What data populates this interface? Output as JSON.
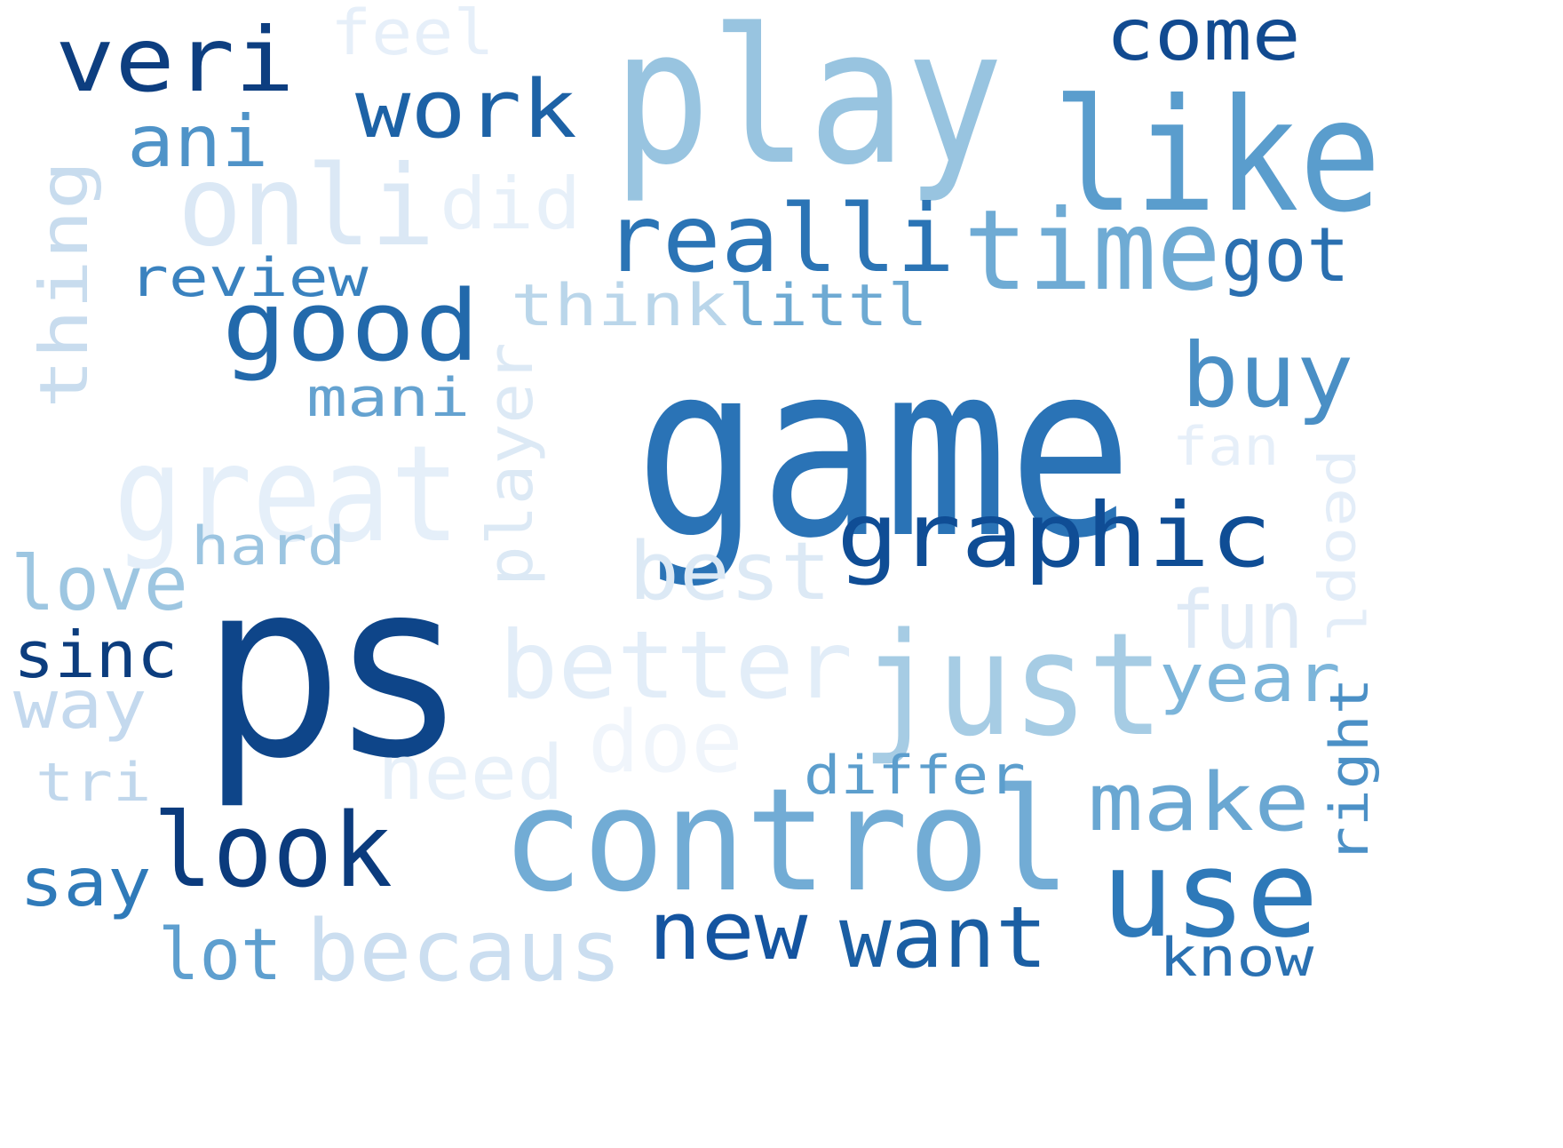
{
  "words": [
    {
      "text": "game",
      "color": "#2a73b6"
    },
    {
      "text": "ps",
      "color": "#0e4589"
    },
    {
      "text": "play",
      "color": "#98c4e0"
    },
    {
      "text": "control",
      "color": "#72acd5"
    },
    {
      "text": "like",
      "color": "#5a9dcd"
    },
    {
      "text": "just",
      "color": "#a6cce4"
    },
    {
      "text": "great",
      "color": "#e5eff9"
    },
    {
      "text": "time",
      "color": "#6fabd4"
    },
    {
      "text": "use",
      "color": "#2e79b9"
    },
    {
      "text": "onli",
      "color": "#dbe8f5"
    },
    {
      "text": "realli",
      "color": "#2b74b5"
    },
    {
      "text": "graphic",
      "color": "#0f4d95"
    },
    {
      "text": "look",
      "color": "#0b3b7d"
    },
    {
      "text": "good",
      "color": "#2269ab"
    },
    {
      "text": "veri",
      "color": "#0d3e80"
    },
    {
      "text": "better",
      "color": "#e2edf8"
    },
    {
      "text": "buy",
      "color": "#4a8fc5"
    },
    {
      "text": "want",
      "color": "#1a5ea3"
    },
    {
      "text": "becaus",
      "color": "#cbdef0"
    },
    {
      "text": "make",
      "color": "#6aa7d2"
    },
    {
      "text": "best",
      "color": "#dce9f5"
    },
    {
      "text": "work",
      "color": "#1d62a6"
    },
    {
      "text": "new",
      "color": "#1454a0"
    },
    {
      "text": "come",
      "color": "#114a90"
    },
    {
      "text": "doe",
      "color": "#f0f5fb"
    },
    {
      "text": "need",
      "color": "#e7f0f9"
    },
    {
      "text": "year",
      "color": "#7cb5da"
    },
    {
      "text": "fun",
      "color": "#dfeaf6"
    },
    {
      "text": "got",
      "color": "#2a6fb0"
    },
    {
      "text": "love",
      "color": "#9dc6e1"
    },
    {
      "text": "thing",
      "color": "#c8dcee"
    },
    {
      "text": "ani",
      "color": "#4f93c8"
    },
    {
      "text": "say",
      "color": "#2f7ab9"
    },
    {
      "text": "sinc",
      "color": "#0c3d7e"
    },
    {
      "text": "player",
      "color": "#dce9f5"
    },
    {
      "text": "lot",
      "color": "#5e9fcf"
    },
    {
      "text": "way",
      "color": "#c4d9ee"
    },
    {
      "text": "did",
      "color": "#e7f0f9"
    },
    {
      "text": "feel",
      "color": "#e6eff9"
    },
    {
      "text": "think",
      "color": "#bad6ea"
    },
    {
      "text": "littl",
      "color": "#6eaad3"
    },
    {
      "text": "review",
      "color": "#3a82bf"
    },
    {
      "text": "hard",
      "color": "#9cc5e1"
    },
    {
      "text": "mani",
      "color": "#64a2d0"
    },
    {
      "text": "differ",
      "color": "#5c9ecd"
    },
    {
      "text": "know",
      "color": "#2a71b2"
    },
    {
      "text": "right",
      "color": "#4b90c6"
    },
    {
      "text": "peopl",
      "color": "#e3edf8"
    },
    {
      "text": "fan",
      "color": "#e6eff9"
    },
    {
      "text": "tri",
      "color": "#c0d7ec"
    }
  ]
}
